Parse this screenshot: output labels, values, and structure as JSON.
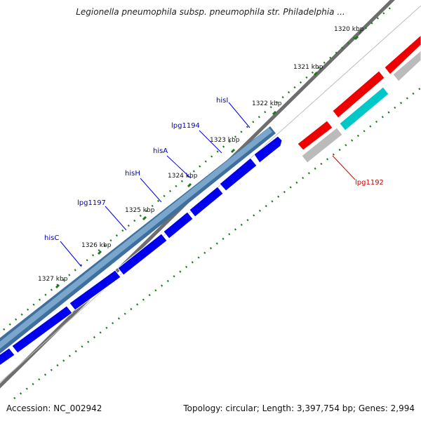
{
  "title": "Legionella pneumophila subsp. pneumophila str. Philadelphia ...",
  "footer": {
    "accession": "Accession: NC_002942",
    "summary": "Topology: circular; Length: 3,397,754 bp; Genes: 2,994"
  },
  "colors": {
    "tick": "#1a7a1a",
    "backbone": "#6e6e6e",
    "operon": "#3f6f9e",
    "forward_gene": "#0000ee",
    "highlight_gene": "#ee0000",
    "cyan_gene": "#00c8c8",
    "grey_gene": "#bbbbbb",
    "gene_label": "#0000bb",
    "highlight_label": "#cc0000"
  },
  "ticks": [
    {
      "label": "1320 kbp"
    },
    {
      "label": "1321 kbp"
    },
    {
      "label": "1322 kbp"
    },
    {
      "label": "1323 kbp"
    },
    {
      "label": "1324 kbp"
    },
    {
      "label": "1325 kbp"
    },
    {
      "label": "1326 kbp"
    },
    {
      "label": "1327 kbp"
    }
  ],
  "genes": [
    {
      "label": "hisI"
    },
    {
      "label": "lpg1194"
    },
    {
      "label": "hisA"
    },
    {
      "label": "hisH"
    },
    {
      "label": "lpg1197"
    },
    {
      "label": "hisC"
    },
    {
      "label": "lpg1192"
    }
  ]
}
